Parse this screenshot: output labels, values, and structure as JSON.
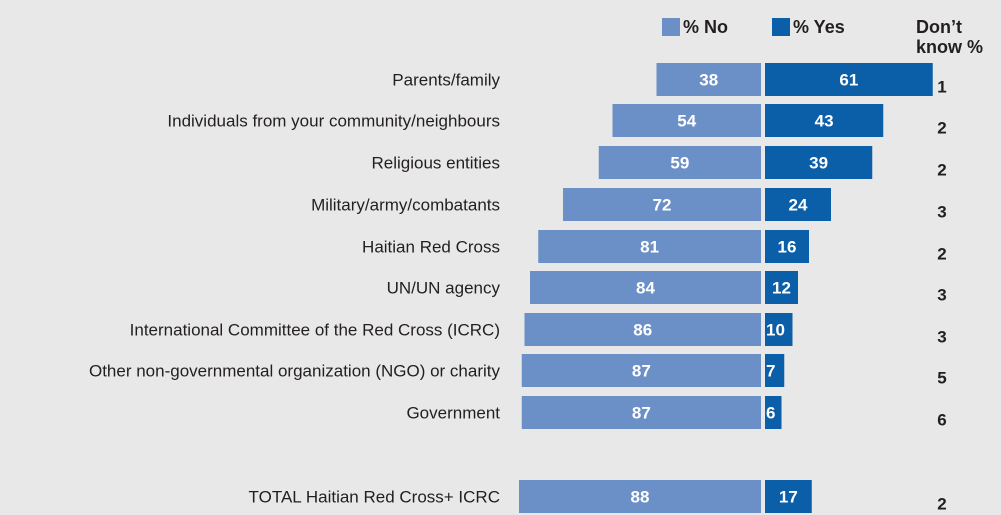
{
  "chart_data": {
    "type": "bar",
    "orientation": "horizontal-diverging",
    "categories": [
      "Parents/family",
      "Individuals from your community/neighbours",
      "Religious entities",
      "Military/army/combatants",
      "Haitian Red Cross",
      "UN/UN agency",
      "International Committee of the Red Cross (ICRC)",
      "Other non-governmental organization (NGO) or charity",
      "Government",
      "TOTAL Haitian Red Cross+ ICRC"
    ],
    "series": [
      {
        "name": "% No",
        "color": "#6b8fc7",
        "values": [
          38,
          54,
          59,
          72,
          81,
          84,
          86,
          87,
          87,
          88
        ]
      },
      {
        "name": "% Yes",
        "color": "#0b5ea8",
        "values": [
          61,
          43,
          39,
          24,
          16,
          12,
          10,
          7,
          6,
          17
        ]
      }
    ],
    "dont_know": {
      "label": [
        "Don’t",
        "know %"
      ],
      "values": [
        1,
        2,
        2,
        3,
        2,
        3,
        3,
        5,
        6,
        2
      ]
    },
    "legend_position": "top",
    "grid": false
  }
}
